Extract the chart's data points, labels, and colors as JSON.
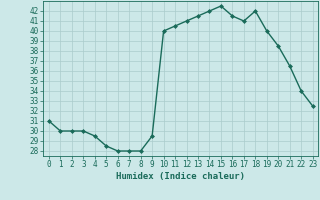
{
  "x": [
    0,
    1,
    2,
    3,
    4,
    5,
    6,
    7,
    8,
    9,
    10,
    11,
    12,
    13,
    14,
    15,
    16,
    17,
    18,
    19,
    20,
    21,
    22,
    23
  ],
  "y": [
    31,
    30,
    30,
    30,
    29.5,
    28.5,
    28,
    28,
    28,
    29.5,
    40,
    40.5,
    41,
    41.5,
    42,
    42.5,
    41.5,
    41,
    42,
    40,
    38.5,
    36.5,
    34,
    32.5
  ],
  "line_color": "#1a6b5a",
  "marker": "D",
  "marker_size": 2.0,
  "bg_color": "#cce8e8",
  "grid_color": "#aacccc",
  "xlabel": "Humidex (Indice chaleur)",
  "ylim": [
    27.5,
    43
  ],
  "xlim": [
    -0.5,
    23.5
  ],
  "yticks": [
    28,
    29,
    30,
    31,
    32,
    33,
    34,
    35,
    36,
    37,
    38,
    39,
    40,
    41,
    42
  ],
  "xticks": [
    0,
    1,
    2,
    3,
    4,
    5,
    6,
    7,
    8,
    9,
    10,
    11,
    12,
    13,
    14,
    15,
    16,
    17,
    18,
    19,
    20,
    21,
    22,
    23
  ],
  "font_color": "#1a6b5a",
  "line_width": 1.0,
  "tick_fontsize": 5.5,
  "xlabel_fontsize": 6.5
}
